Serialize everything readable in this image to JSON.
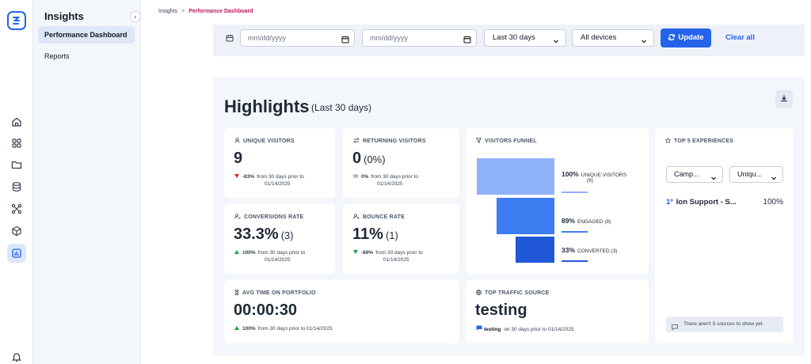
{
  "sidebar": {
    "title": "Insights",
    "collapse_icon": "chevron-left-icon",
    "items": [
      {
        "label": "Performance Dashboard",
        "active": true
      },
      {
        "label": "Reports",
        "active": false
      }
    ]
  },
  "rail": {
    "icons": [
      "home-icon",
      "grid-icon",
      "folder-icon",
      "database-icon",
      "share-nodes-icon",
      "cube-icon",
      "chart-icon",
      "bell-icon"
    ],
    "active": "chart-icon"
  },
  "breadcrumb": {
    "parent": "Insights",
    "separator": ">",
    "current": "Performance Dashboard"
  },
  "filters": {
    "start_date_placeholder": "mm/dd/yyyy",
    "end_date_placeholder": "mm/dd/yyyy",
    "range": "Last 30 days",
    "devices": "All devices",
    "update_label": "Update",
    "clear_label": "Clear all"
  },
  "highlights": {
    "title": "Highlights",
    "subtitle": "(Last 30 days)",
    "unique_visitors": {
      "label": "UNIQUE VISITORS",
      "value": "9",
      "delta": "-83%",
      "delta_dir": "down",
      "delta_text": "from 30 days prior to",
      "delta_date": "01/14/2025"
    },
    "returning_visitors": {
      "label": "RETURNING VISITORS",
      "value": "0",
      "paren": "(0%)",
      "delta": "0%",
      "delta_dir": "flat",
      "delta_text": "from 30 days prior to",
      "delta_date": "01/14/2025"
    },
    "conversions_rate": {
      "label": "CONVERSIONS RATE",
      "value": "33.3%",
      "paren": "(3)",
      "delta": "100%",
      "delta_dir": "up",
      "delta_text": "from 30 days prior to",
      "delta_date": "01/14/2025"
    },
    "bounce_rate": {
      "label": "BOUNCE RATE",
      "value": "11%",
      "paren": "(1)",
      "delta": "-89%",
      "delta_dir": "down",
      "delta_text": "from 30 days prior to",
      "delta_date": "01/14/2025"
    },
    "avg_time": {
      "label": "AVG TIME ON PORTFOLIO",
      "value": "00:00:30",
      "delta": "100%",
      "delta_dir": "up",
      "delta_text": "from 30 days prior to 01/14/2025"
    },
    "funnel": {
      "label": "VISITORS FUNNEL",
      "stages": [
        {
          "pct": "100%",
          "name": "UNIQUE VISITORS",
          "count": "(9)",
          "color": "#8fb1f8"
        },
        {
          "pct": "89%",
          "name": "ENGAGED",
          "count": "(8)",
          "color": "#3b7cf0"
        },
        {
          "pct": "33%",
          "name": "CONVERTED",
          "count": "(3)",
          "color": "#2058d8"
        }
      ]
    },
    "traffic": {
      "label": "TOP TRAFFIC SOURCE",
      "value": "testing",
      "source": "testing",
      "text": "on 30 days prior to 01/14/2025"
    },
    "top5": {
      "label": "TOP 5 EXPERIENCES",
      "select1": "Camp...",
      "select2": "Uniqu...",
      "rows": [
        {
          "rank": "1º",
          "name": "Ion Support - S...",
          "pct": "100%"
        }
      ],
      "notice": "There aren't 5 sources to show yet."
    }
  },
  "colors": {
    "accent": "#2563eb",
    "down": "#dc2626",
    "up": "#16a34a"
  }
}
